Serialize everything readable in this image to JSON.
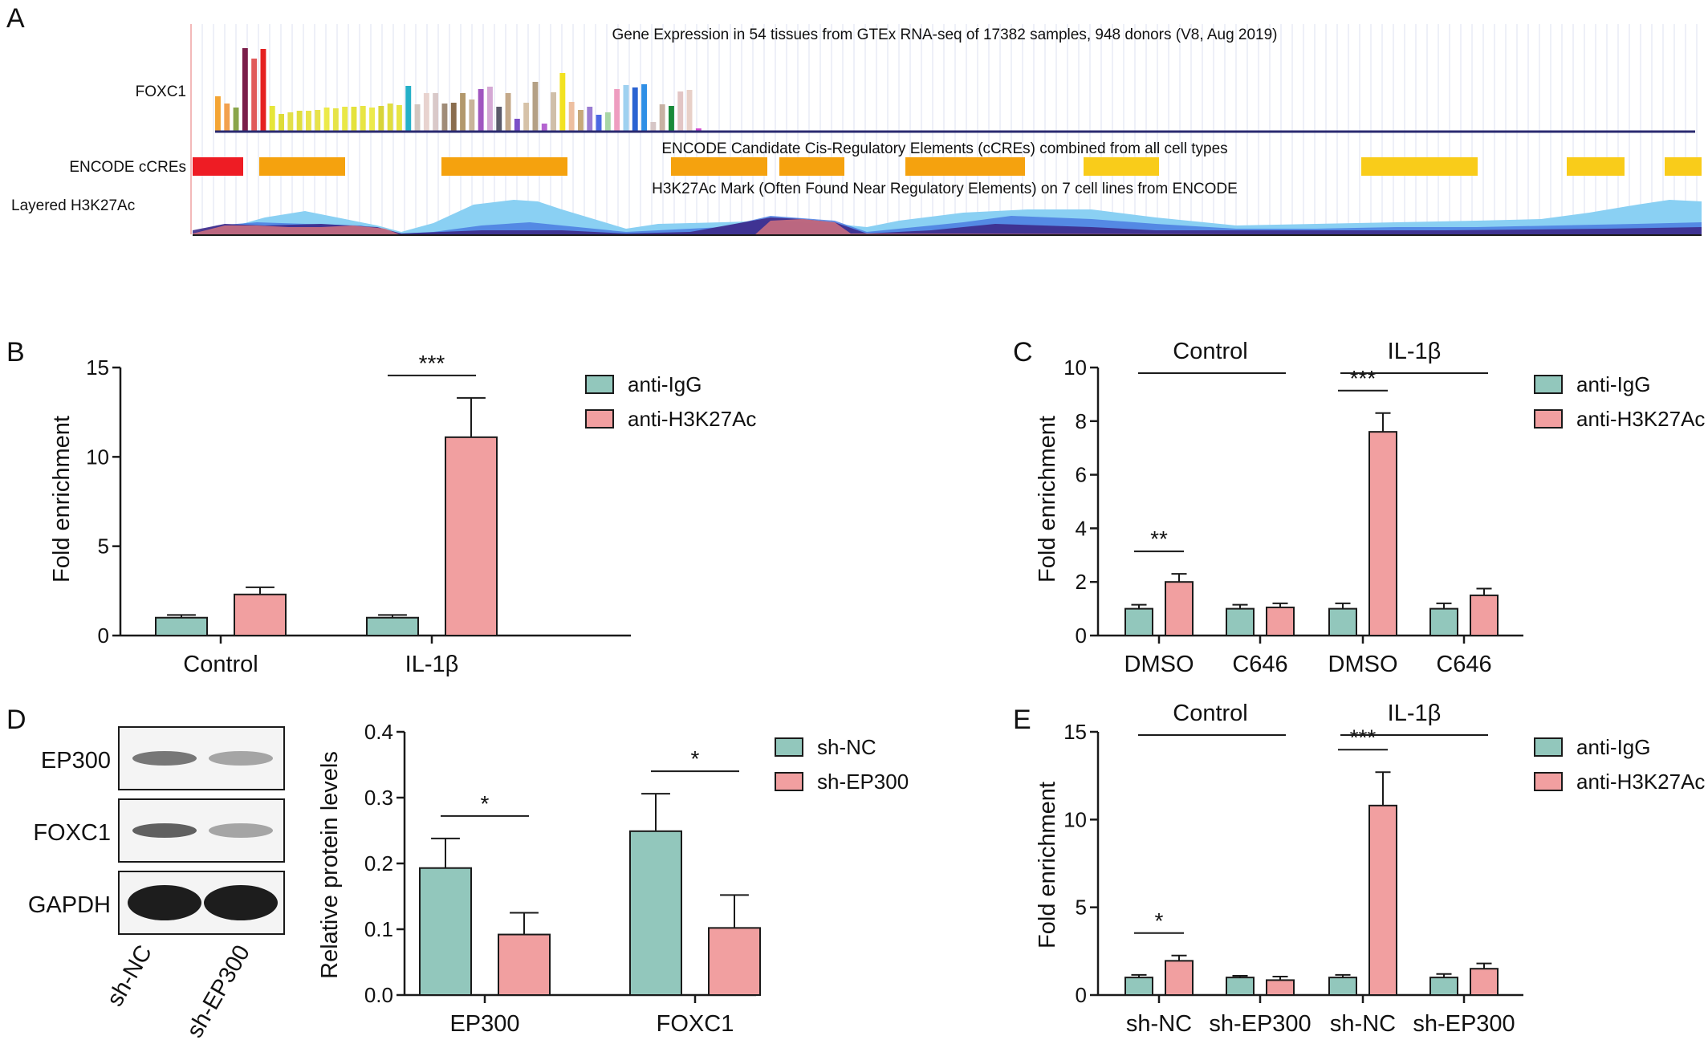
{
  "panel_labels": {
    "a": "A",
    "b": "B",
    "c": "C",
    "d": "D",
    "e": "E"
  },
  "colors": {
    "igg": "#92c7bc",
    "h3k": "#f19fa0",
    "axis": "#1a1a1a",
    "ccre_red": "#ee1c24",
    "ccre_orange": "#f5a20e",
    "ccre_yellow": "#f9cc1a"
  },
  "browser": {
    "title": "Gene Expression in 54 tissues from GTEx RNA-seq of 17382 samples, 948 donors (V8, Aug 2019)",
    "gene_label": "FOXC1",
    "ccre_track_label": "ENCODE cCREs",
    "ccre_title": "ENCODE Candidate Cis-Regulatory Elements (cCREs) combined from all cell types",
    "h3k_track_label": "Layered H3K27Ac",
    "h3k_title": "H3K27Ac Mark (Often Found Near Regulatory Elements) on 7 cell lines from ENCODE"
  },
  "legends": {
    "b": [
      "anti-IgG",
      "anti-H3K27Ac"
    ],
    "c": [
      "anti-IgG",
      "anti-H3K27Ac"
    ],
    "d": [
      "sh-NC",
      "sh-EP300"
    ],
    "e": [
      "anti-IgG",
      "anti-H3K27Ac"
    ]
  },
  "group_labels": {
    "c": [
      "Control",
      "IL-1β"
    ],
    "e": [
      "Control",
      "IL-1β"
    ]
  },
  "blot": {
    "rows": [
      "EP300",
      "FOXC1",
      "GAPDH"
    ],
    "lanes": [
      "sh-NC",
      "sh-EP300"
    ]
  },
  "chart_data": [
    {
      "panel": "B",
      "type": "bar",
      "ylabel": "Fold enrichment",
      "ylim": [
        0,
        15
      ],
      "yticks": [
        "0",
        "5",
        "10",
        "15"
      ],
      "categories": [
        "Control",
        "IL-1β"
      ],
      "series": [
        {
          "name": "anti-IgG",
          "values": [
            1.0,
            1.0
          ],
          "errors": [
            0.15,
            0.15
          ]
        },
        {
          "name": "anti-H3K27Ac",
          "values": [
            2.3,
            11.1
          ],
          "errors": [
            0.4,
            2.2
          ]
        }
      ],
      "significance": [
        {
          "category_index": 1,
          "label": "***"
        }
      ]
    },
    {
      "panel": "C",
      "type": "bar",
      "ylabel": "Fold enrichment",
      "ylim": [
        0,
        10
      ],
      "yticks": [
        "0",
        "2",
        "4",
        "6",
        "8",
        "10"
      ],
      "categories": [
        "DMSO",
        "C646",
        "DMSO",
        "C646"
      ],
      "series": [
        {
          "name": "anti-IgG",
          "values": [
            1.0,
            1.0,
            1.0,
            1.0
          ],
          "errors": [
            0.15,
            0.15,
            0.2,
            0.2
          ]
        },
        {
          "name": "anti-H3K27Ac",
          "values": [
            2.0,
            1.05,
            7.6,
            1.5
          ],
          "errors": [
            0.3,
            0.15,
            0.7,
            0.25
          ]
        }
      ],
      "significance": [
        {
          "category_index": 0,
          "label": "**"
        },
        {
          "category_index": 2,
          "label": "***"
        }
      ]
    },
    {
      "panel": "D",
      "type": "bar",
      "ylabel": "Relative protein levels",
      "ylim": [
        0,
        0.4
      ],
      "yticks": [
        "0.0",
        "0.1",
        "0.2",
        "0.3",
        "0.4"
      ],
      "categories": [
        "EP300",
        "FOXC1"
      ],
      "series": [
        {
          "name": "sh-NC",
          "values": [
            0.193,
            0.249
          ],
          "errors": [
            0.045,
            0.057
          ]
        },
        {
          "name": "sh-EP300",
          "values": [
            0.092,
            0.102
          ],
          "errors": [
            0.033,
            0.05
          ]
        }
      ],
      "significance": [
        {
          "category_index": 0,
          "label": "*"
        },
        {
          "category_index": 1,
          "label": "*"
        }
      ]
    },
    {
      "panel": "E",
      "type": "bar",
      "ylabel": "Fold enrichment",
      "ylim": [
        0,
        15
      ],
      "yticks": [
        "0",
        "5",
        "10",
        "15"
      ],
      "categories": [
        "sh-NC",
        "sh-EP300",
        "sh-NC",
        "sh-EP300"
      ],
      "series": [
        {
          "name": "anti-IgG",
          "values": [
            1.0,
            1.0,
            1.0,
            1.0
          ],
          "errors": [
            0.15,
            0.1,
            0.15,
            0.2
          ]
        },
        {
          "name": "anti-H3K27Ac",
          "values": [
            1.95,
            0.85,
            10.8,
            1.5
          ],
          "errors": [
            0.3,
            0.2,
            1.9,
            0.3
          ]
        }
      ],
      "significance": [
        {
          "category_index": 0,
          "label": "*"
        },
        {
          "category_index": 2,
          "label": "***"
        }
      ]
    }
  ]
}
